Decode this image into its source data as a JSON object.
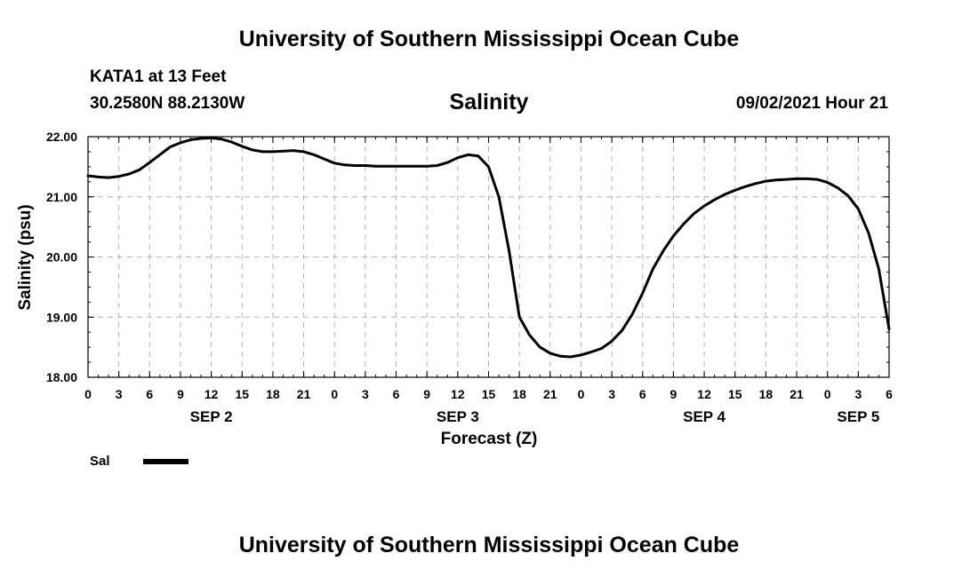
{
  "header": {
    "title": "University of Southern Mississippi Ocean Cube"
  },
  "station": {
    "name": "KATA1 at 13 Feet",
    "coords": "30.2580N  88.2130W",
    "datetime": "09/02/2021 Hour 21"
  },
  "footer": {
    "title": "University of Southern Mississippi Ocean Cube"
  },
  "chart_data": {
    "type": "line",
    "title": "Salinity",
    "xlabel": "Forecast (Z)",
    "ylabel": "Salinity (psu)",
    "ylim": [
      18.0,
      22.0
    ],
    "xlim": [
      0,
      78
    ],
    "yticks": [
      "18.00",
      "19.00",
      "20.00",
      "21.00",
      "22.00"
    ],
    "xtick_labels": [
      "0",
      "3",
      "6",
      "9",
      "12",
      "15",
      "18",
      "21",
      "0",
      "3",
      "6",
      "9",
      "12",
      "15",
      "18",
      "21",
      "0",
      "3",
      "6",
      "9",
      "12",
      "15",
      "18",
      "21",
      "0",
      "3",
      "6"
    ],
    "day_labels": [
      {
        "label": "SEP 2",
        "hour": 12
      },
      {
        "label": "SEP 3",
        "hour": 36
      },
      {
        "label": "SEP 4",
        "hour": 60
      },
      {
        "label": "SEP 5",
        "hour": 75
      }
    ],
    "grid": true,
    "legend_position": "bottom-left",
    "series": [
      {
        "name": "Sal",
        "color": "#000000",
        "x": [
          0,
          1,
          2,
          3,
          4,
          5,
          6,
          7,
          8,
          9,
          10,
          11,
          12,
          13,
          14,
          15,
          16,
          17,
          18,
          19,
          20,
          21,
          22,
          23,
          24,
          25,
          26,
          27,
          28,
          29,
          30,
          31,
          32,
          33,
          34,
          35,
          36,
          37,
          38,
          39,
          40,
          41,
          42,
          43,
          44,
          45,
          46,
          47,
          48,
          49,
          50,
          51,
          52,
          53,
          54,
          55,
          56,
          57,
          58,
          59,
          60,
          61,
          62,
          63,
          64,
          65,
          66,
          67,
          68,
          69,
          70,
          71,
          72,
          73,
          74,
          75,
          76,
          77,
          78
        ],
        "y": [
          21.35,
          21.33,
          21.32,
          21.34,
          21.38,
          21.45,
          21.57,
          21.7,
          21.83,
          21.9,
          21.95,
          21.97,
          21.98,
          21.96,
          21.91,
          21.84,
          21.78,
          21.75,
          21.75,
          21.76,
          21.77,
          21.75,
          21.7,
          21.63,
          21.56,
          21.53,
          21.52,
          21.52,
          21.51,
          21.51,
          21.51,
          21.51,
          21.51,
          21.51,
          21.52,
          21.57,
          21.65,
          21.7,
          21.68,
          21.5,
          21.0,
          20.1,
          19.0,
          18.7,
          18.5,
          18.4,
          18.35,
          18.34,
          18.37,
          18.42,
          18.48,
          18.6,
          18.78,
          19.05,
          19.4,
          19.8,
          20.1,
          20.35,
          20.55,
          20.72,
          20.85,
          20.95,
          21.04,
          21.11,
          21.17,
          21.22,
          21.26,
          21.28,
          21.29,
          21.3,
          21.3,
          21.29,
          21.24,
          21.15,
          21.02,
          20.8,
          20.4,
          19.8,
          18.8
        ]
      }
    ]
  }
}
